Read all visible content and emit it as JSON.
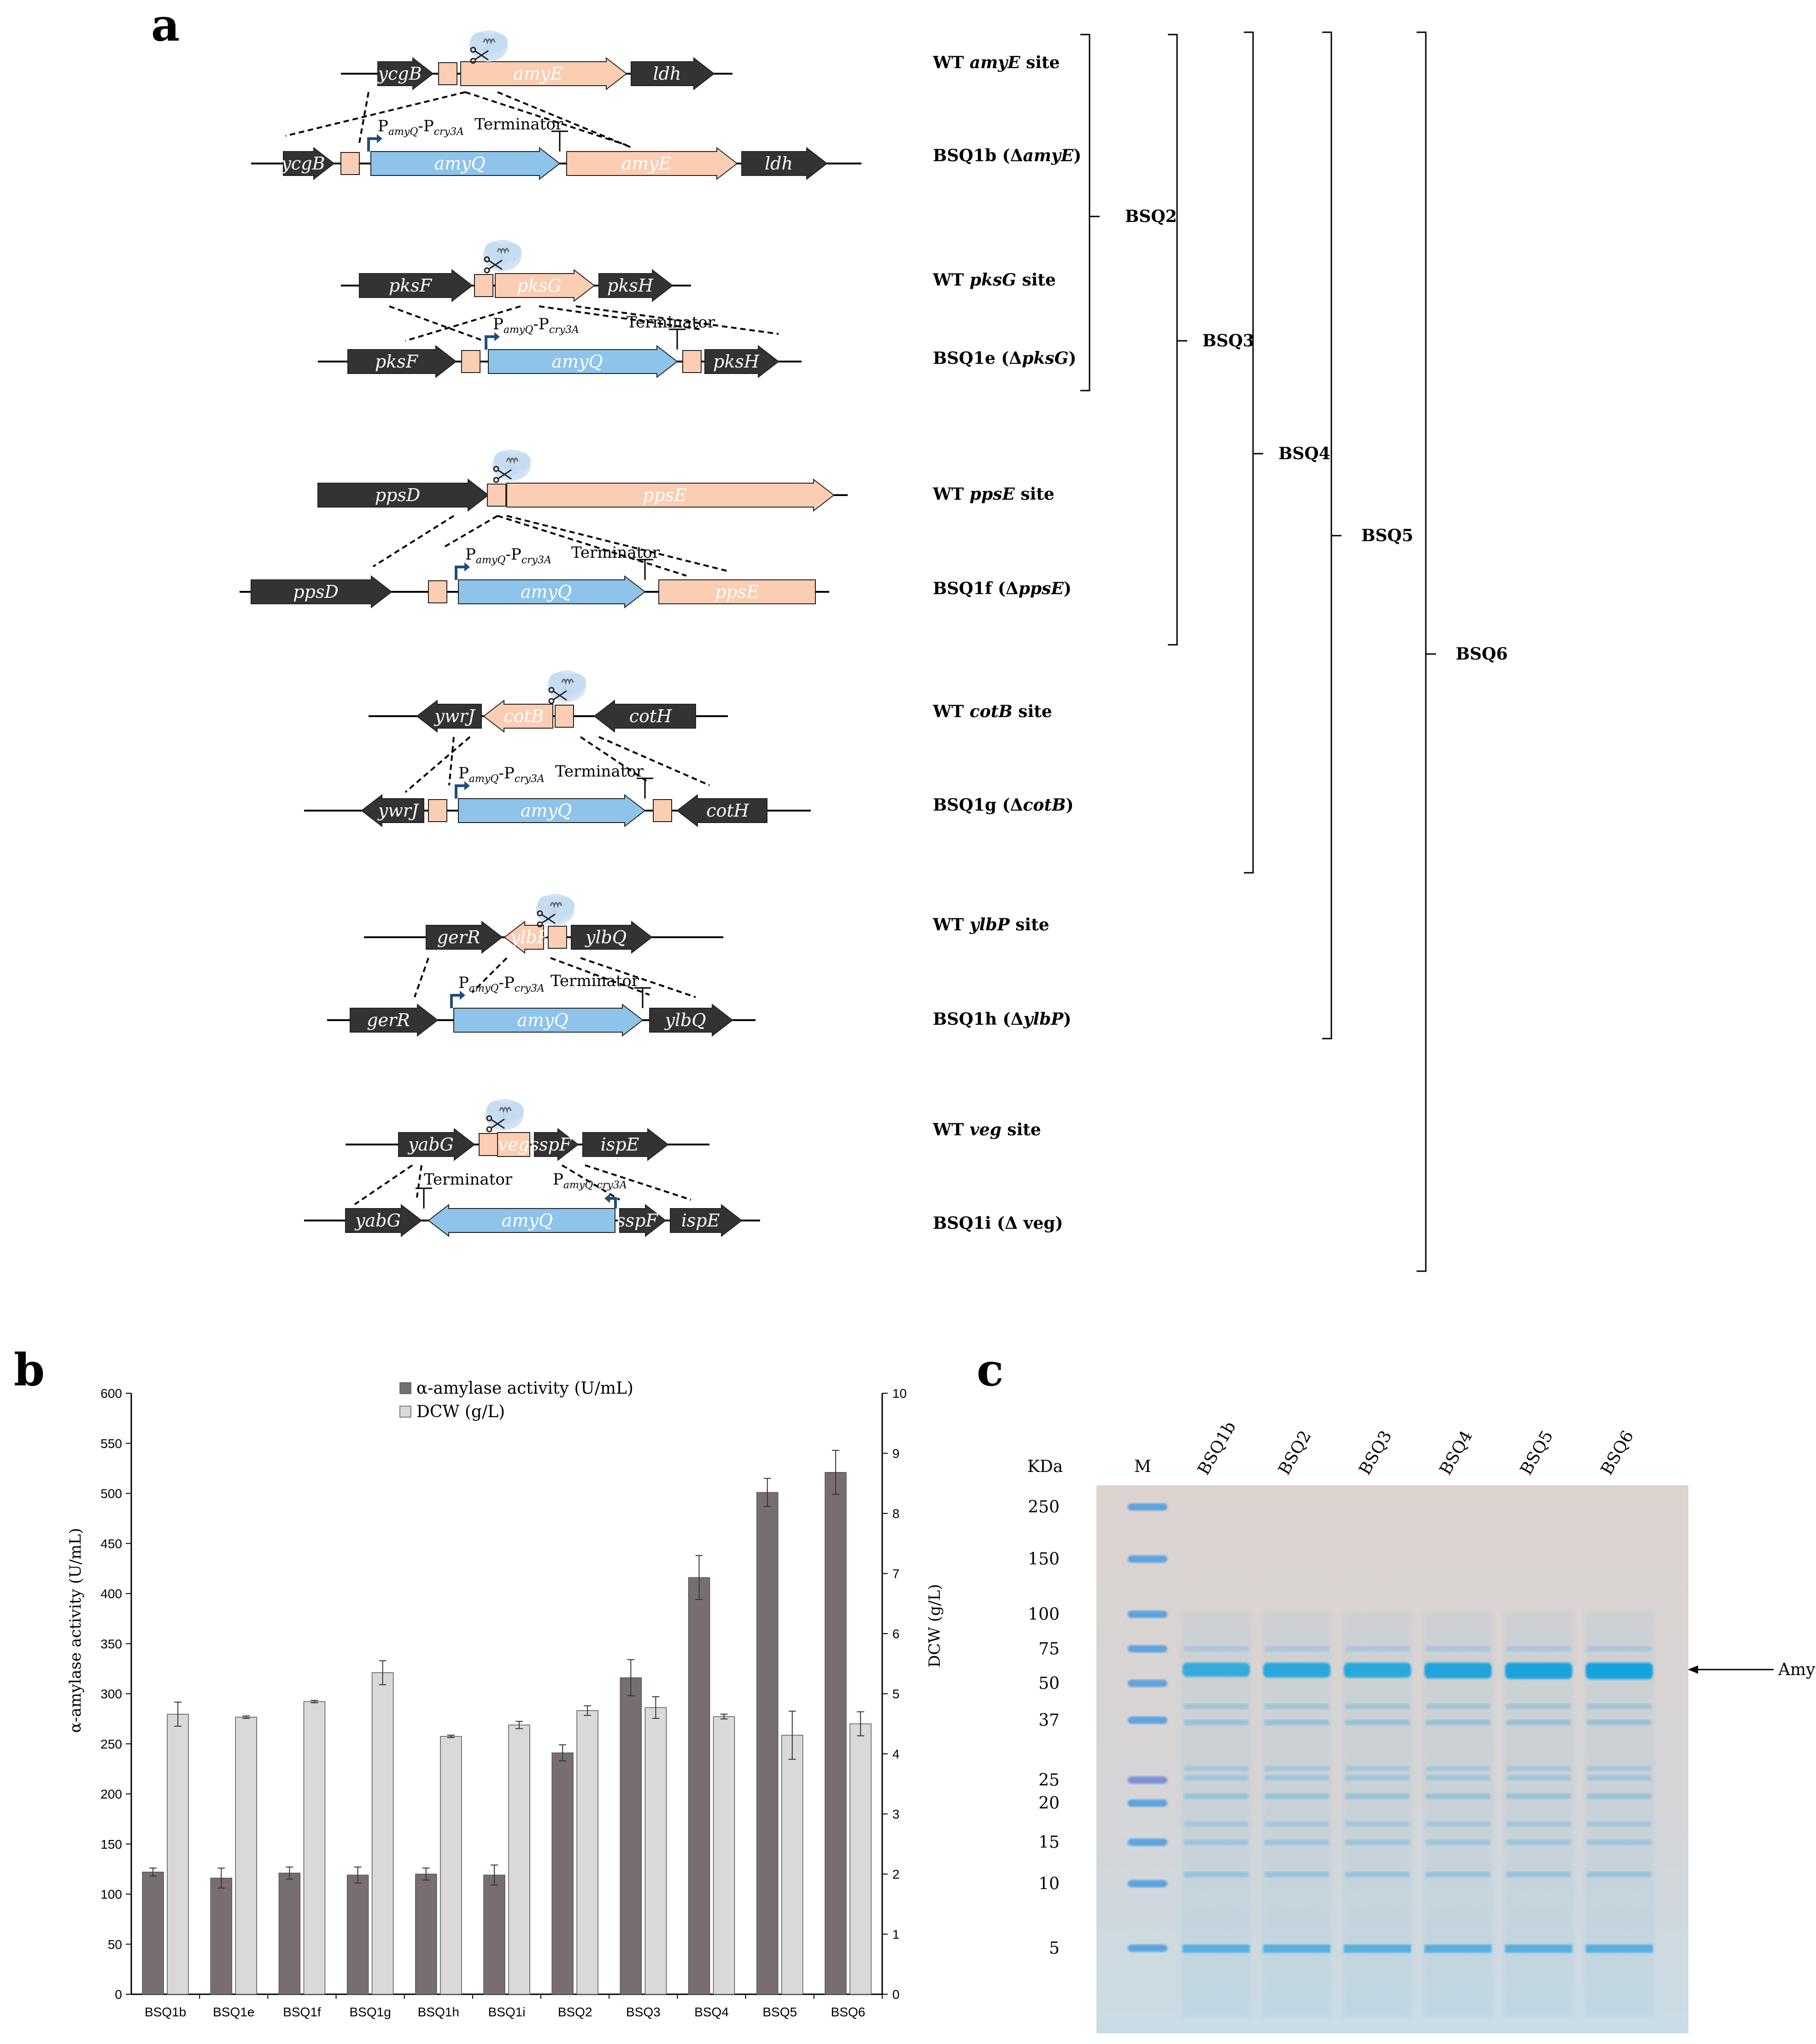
{
  "panels": {
    "a": "a",
    "b": "b",
    "c": "c"
  },
  "panel_a": {
    "strain_labels": [
      {
        "pre": "WT ",
        "gene": "amyE",
        "post": " site"
      },
      {
        "pre": "BSQ1b (Δ",
        "gene": "amyE",
        "post": ")"
      },
      {
        "pre": "WT ",
        "gene": "pksG",
        "post": " site"
      },
      {
        "pre": "BSQ1e (Δ",
        "gene": "pksG",
        "post": ")"
      },
      {
        "pre": "WT ",
        "gene": "ppsE",
        "post": " site"
      },
      {
        "pre": "BSQ1f (Δ",
        "gene": "ppsE",
        "post": ")"
      },
      {
        "pre": "WT ",
        "gene": "cotB",
        "post": " site"
      },
      {
        "pre": "BSQ1g (Δ",
        "gene": "cotB",
        "post": ")"
      },
      {
        "pre": "WT ",
        "gene": "ylbP",
        "post": " site"
      },
      {
        "pre": "BSQ1h (Δ",
        "gene": "ylbP",
        "post": ")"
      },
      {
        "pre": "WT ",
        "gene": "veg",
        "post": " site"
      },
      {
        "pre": "BSQ1i (Δ veg)",
        "gene": "",
        "post": ""
      }
    ],
    "brackets": [
      "BSQ2",
      "BSQ3",
      "BSQ4",
      "BSQ5",
      "BSQ6"
    ],
    "promoter": {
      "p": "P",
      "sub1": "amyQ",
      "dash": "-P",
      "sub2": "cry3A"
    },
    "promoter_veg": {
      "p": "P",
      "sub": "amyQ-cry3A"
    },
    "terminator": "Terminator",
    "genes": {
      "ycgB": "ycgB",
      "amyE": "amyE",
      "ldh": "ldh",
      "amyQ": "amyQ",
      "pksF": "pksF",
      "pksG": "pksG",
      "pksH": "pksH",
      "ppsD": "ppsD",
      "ppsE": "ppsE",
      "ywrJ": "ywrJ",
      "cotB": "cotB",
      "cotH": "cotH",
      "gerR": "gerR",
      "ylbP": "ylbP",
      "ylbQ": "ylbQ",
      "yabG": "yabG",
      "veg": "veg",
      "sspF": "sspF",
      "ispE": "ispE"
    }
  },
  "chart_data": {
    "type": "bar",
    "categories": [
      "BSQ1b",
      "BSQ1e",
      "BSQ1f",
      "BSQ1g",
      "BSQ1h",
      "BSQ1i",
      "BSQ2",
      "BSQ3",
      "BSQ4",
      "BSQ5",
      "BSQ6"
    ],
    "series": [
      {
        "name": "α-amylase activity (U/mL)",
        "axis": "left",
        "color": "#776e6f",
        "values": [
          122,
          116,
          121,
          119,
          120,
          119,
          241,
          316,
          416,
          501,
          521
        ],
        "errors": [
          4,
          10,
          6,
          8,
          6,
          10,
          8,
          18,
          22,
          14,
          22
        ]
      },
      {
        "name": "DCW (g/L)",
        "axis": "right",
        "color": "#d9d9d9",
        "values": [
          4.66,
          4.61,
          4.87,
          5.35,
          4.29,
          4.48,
          4.72,
          4.77,
          4.62,
          4.31,
          4.5
        ],
        "errors": [
          0.2,
          0.02,
          0.02,
          0.2,
          0.02,
          0.06,
          0.08,
          0.18,
          0.04,
          0.4,
          0.2
        ]
      }
    ],
    "ylabel": "α-amylase activity (U/mL)",
    "y2label": "DCW (g/L)",
    "ylim": [
      0,
      600
    ],
    "y2lim": [
      0,
      10
    ],
    "yticks": [
      0,
      50,
      100,
      150,
      200,
      250,
      300,
      350,
      400,
      450,
      500,
      550,
      600
    ],
    "y2ticks": [
      0,
      1,
      2,
      3,
      4,
      5,
      6,
      7,
      8,
      9,
      10
    ],
    "legend": [
      "α-amylase activity (U/mL)",
      "DCW (g/L)"
    ],
    "legend_position": "top-center"
  },
  "panel_c": {
    "kda_label": "KDa",
    "marker_label": "M",
    "lanes": [
      "BSQ1b",
      "BSQ2",
      "BSQ3",
      "BSQ4",
      "BSQ5",
      "BSQ6"
    ],
    "markers": [
      "250",
      "150",
      "100",
      "75",
      "50",
      "37",
      "25",
      "20",
      "15",
      "10",
      "5"
    ],
    "band_label": "AmyQ",
    "amyq_band_strength": [
      0.55,
      0.7,
      0.72,
      0.85,
      0.95,
      1.0
    ]
  },
  "colors": {
    "dark_gene": "#333333",
    "salmon": "#fbcdb2",
    "blue": "#8ec3ea",
    "arrow_blue": "#1f4e79"
  }
}
